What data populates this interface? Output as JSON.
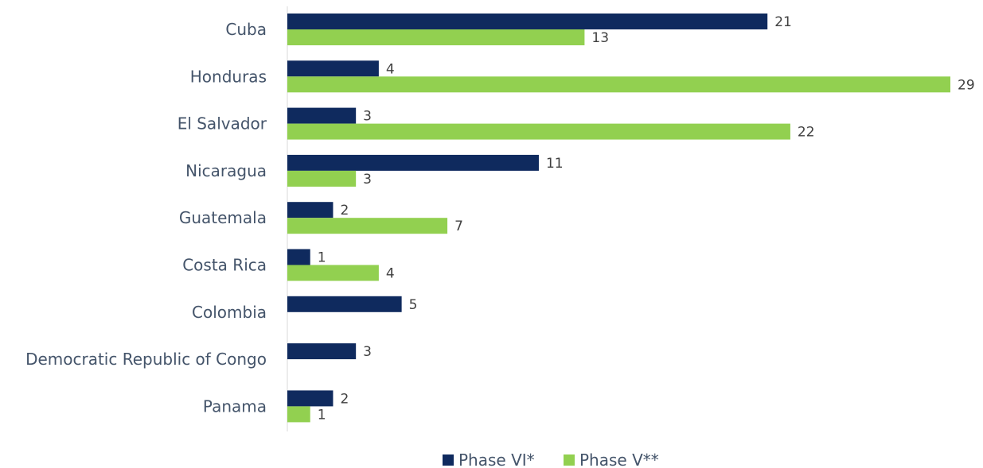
{
  "chart_data": {
    "type": "bar",
    "orientation": "horizontal",
    "categories": [
      "Cuba",
      "Honduras",
      "El Salvador",
      "Nicaragua",
      "Guatemala",
      "Costa Rica",
      "Colombia",
      "Democratic Republic of Congo",
      "Panama"
    ],
    "series": [
      {
        "name": "Phase VI*",
        "color": "#0f2a5e",
        "values": [
          21,
          4,
          3,
          11,
          2,
          1,
          5,
          3,
          2
        ]
      },
      {
        "name": "Phase V**",
        "color": "#92d050",
        "values": [
          13,
          29,
          22,
          3,
          7,
          4,
          null,
          null,
          1
        ]
      }
    ],
    "title": "",
    "xlabel": "",
    "ylabel": "",
    "xlim": [
      0,
      29
    ],
    "grid": false,
    "legend_position": "bottom"
  }
}
